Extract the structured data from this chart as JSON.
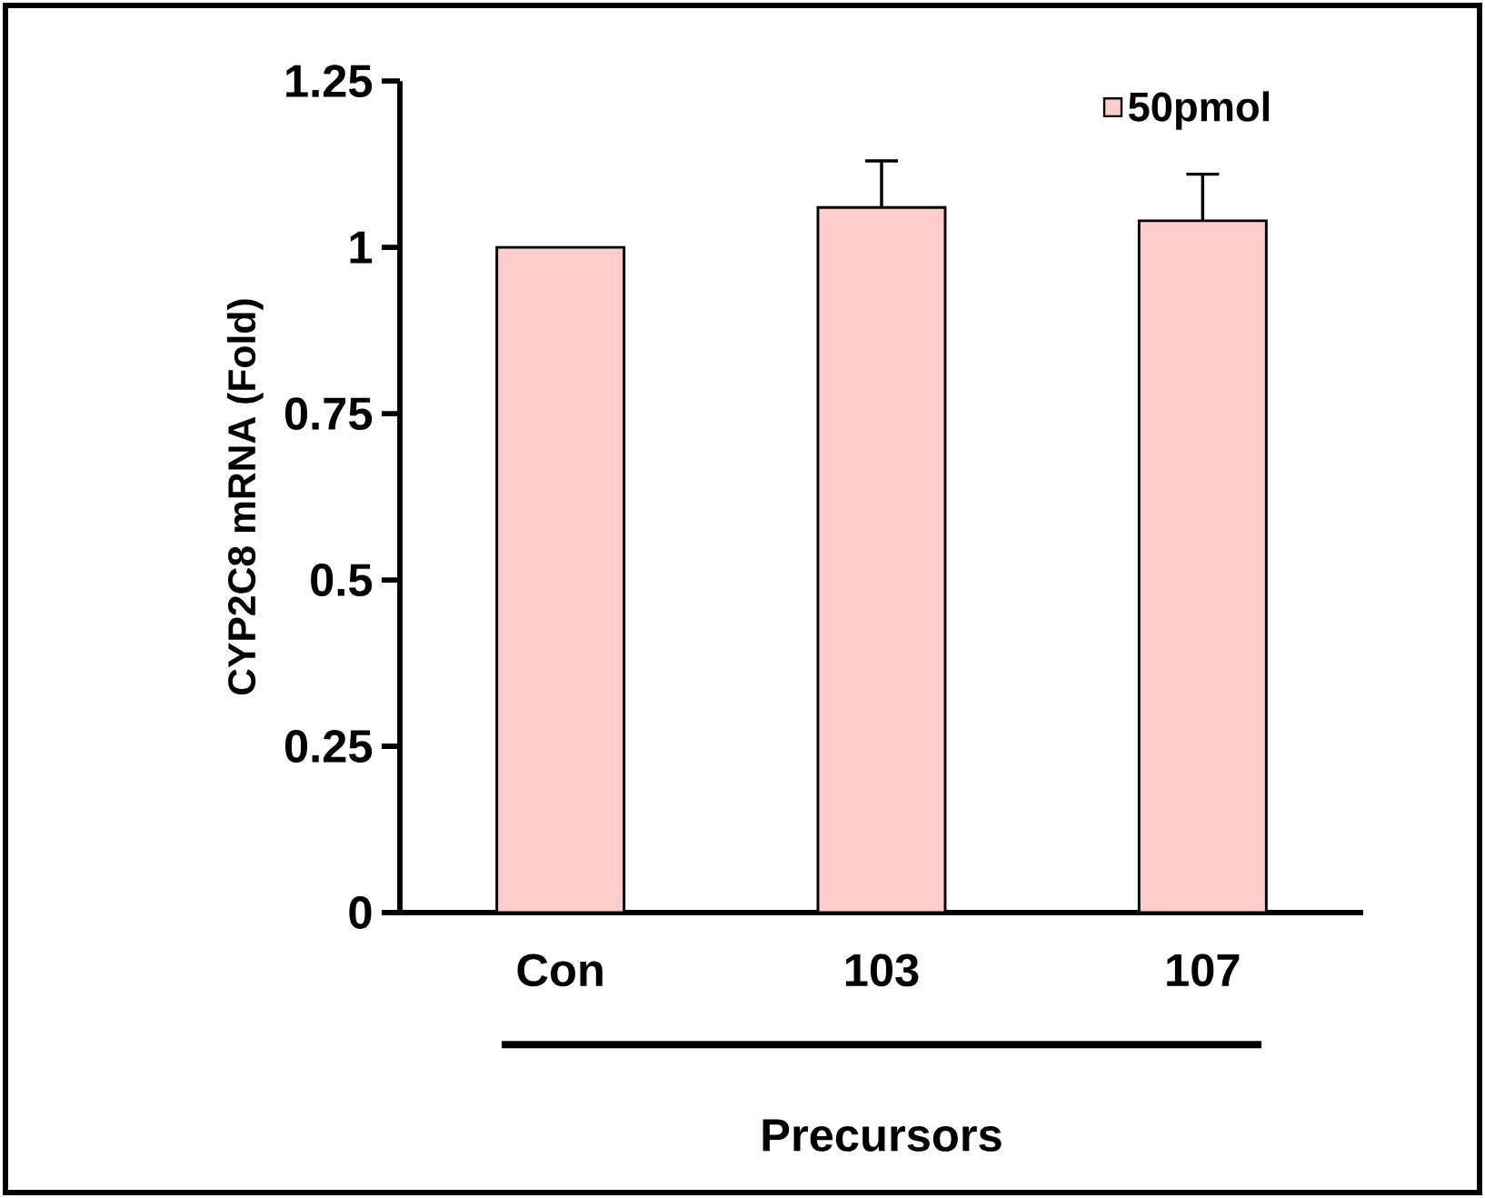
{
  "chart_data": {
    "type": "bar",
    "ylabel": "CYP2C8 mRNA (Fold)",
    "xlabel": "Precursors",
    "categories": [
      "Con",
      "103",
      "107"
    ],
    "series": [
      {
        "name": "50pmol",
        "color": "#ffcccc",
        "values": [
          1,
          1.06,
          1.04
        ],
        "errors": [
          null,
          0.07,
          0.07
        ]
      }
    ],
    "ylim": [
      0,
      1.25
    ],
    "yticks": [
      0,
      0.25,
      0.5,
      0.75,
      1,
      1.25
    ],
    "legend": "top right"
  }
}
